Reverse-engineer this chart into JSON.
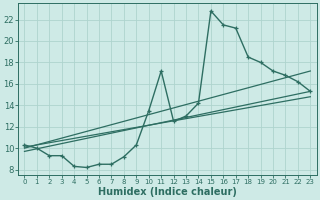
{
  "xlabel": "Humidex (Indice chaleur)",
  "bg_color": "#ceeae6",
  "line_color": "#2e6e62",
  "grid_color": "#aed4ce",
  "xlim": [
    -0.5,
    23.5
  ],
  "ylim": [
    7.5,
    23.5
  ],
  "yticks": [
    8,
    10,
    12,
    14,
    16,
    18,
    20,
    22
  ],
  "xticks": [
    0,
    1,
    2,
    3,
    4,
    5,
    6,
    7,
    8,
    9,
    10,
    11,
    12,
    13,
    14,
    15,
    16,
    17,
    18,
    19,
    20,
    21,
    22,
    23
  ],
  "main_data_x": [
    0,
    1,
    2,
    3,
    4,
    5,
    6,
    7,
    8,
    9,
    10,
    11,
    12,
    13,
    14,
    15,
    16,
    17,
    18,
    19,
    20,
    21,
    22,
    23
  ],
  "main_data_y": [
    10.3,
    10.0,
    9.3,
    9.3,
    8.3,
    8.2,
    8.5,
    8.5,
    9.2,
    10.3,
    13.5,
    17.2,
    12.5,
    13.0,
    14.2,
    22.8,
    21.5,
    21.2,
    18.5,
    18.0,
    17.2,
    16.8,
    16.2,
    15.3
  ],
  "trend1_x": [
    0,
    23
  ],
  "trend1_y": [
    9.7,
    15.3
  ],
  "trend2_x": [
    0,
    23
  ],
  "trend2_y": [
    10.0,
    17.2
  ],
  "trend3_x": [
    0,
    23
  ],
  "trend3_y": [
    10.1,
    14.8
  ],
  "font_size_label": 7,
  "font_size_tick": 6
}
